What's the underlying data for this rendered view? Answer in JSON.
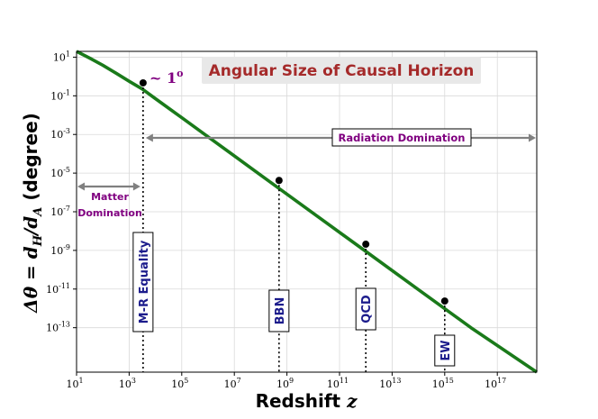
{
  "chart_data": {
    "type": "line",
    "title": "Angular Size of Causal Horizon",
    "xlabel": "Redshift",
    "xlabel_var": "z",
    "ylabel_prefix": "Δθ = d",
    "ylabel_sub1": "H",
    "ylabel_mid": "/d",
    "ylabel_sub2": "A",
    "ylabel_suffix": "(degree)",
    "x_scale": "log",
    "y_scale": "log",
    "xlim_exp": [
      1,
      18.5
    ],
    "ylim_exp": [
      -15.3,
      1.3
    ],
    "x_tick_exponents": [
      1,
      3,
      5,
      7,
      9,
      11,
      13,
      15,
      17
    ],
    "y_tick_exponents": [
      1,
      -1,
      -3,
      -5,
      -7,
      -9,
      -11,
      -13
    ],
    "tick_base": "10",
    "grid": true,
    "series": [
      {
        "name": "Δθ",
        "color": "#1a7a1a",
        "log_x": [
          1,
          1.5,
          2,
          2.5,
          3,
          3.5,
          4,
          5,
          6,
          8,
          10,
          12,
          14,
          16,
          18.5
        ],
        "log_y": [
          1.3,
          0.95,
          0.58,
          0.17,
          -0.25,
          -0.65,
          -1.15,
          -2.13,
          -3.12,
          -5.1,
          -7.08,
          -9.05,
          -11.03,
          -13.0,
          -15.3
        ]
      }
    ],
    "points": [
      {
        "label": "M-R Equality",
        "log_x": 3.53,
        "log_y": -0.33
      },
      {
        "label": "BBN",
        "log_x": 8.7,
        "log_y": -5.38
      },
      {
        "label": "QCD",
        "log_x": 12.0,
        "log_y": -8.68
      },
      {
        "label": "EW",
        "log_x": 15.0,
        "log_y": -11.62
      }
    ],
    "point_note": "~ 1",
    "point_note_sup": "o",
    "regions": [
      {
        "label": "Radiation Domination",
        "log_x_from": 3.53,
        "log_x_to": 18.5,
        "log_y": -3.2
      },
      {
        "label_line1": "Matter",
        "label_line2": "Domination",
        "log_x_from": 1,
        "log_x_to": 3.53,
        "log_y": -5.7
      }
    ],
    "colors": {
      "title_text": "#a52a2a",
      "title_box": "#e8e8e8",
      "point_label_text": "#1c1c8c",
      "annotation_text": "#800080",
      "arrow": "#808080",
      "grid": "#d9d9d9",
      "marker": "#000000"
    }
  }
}
